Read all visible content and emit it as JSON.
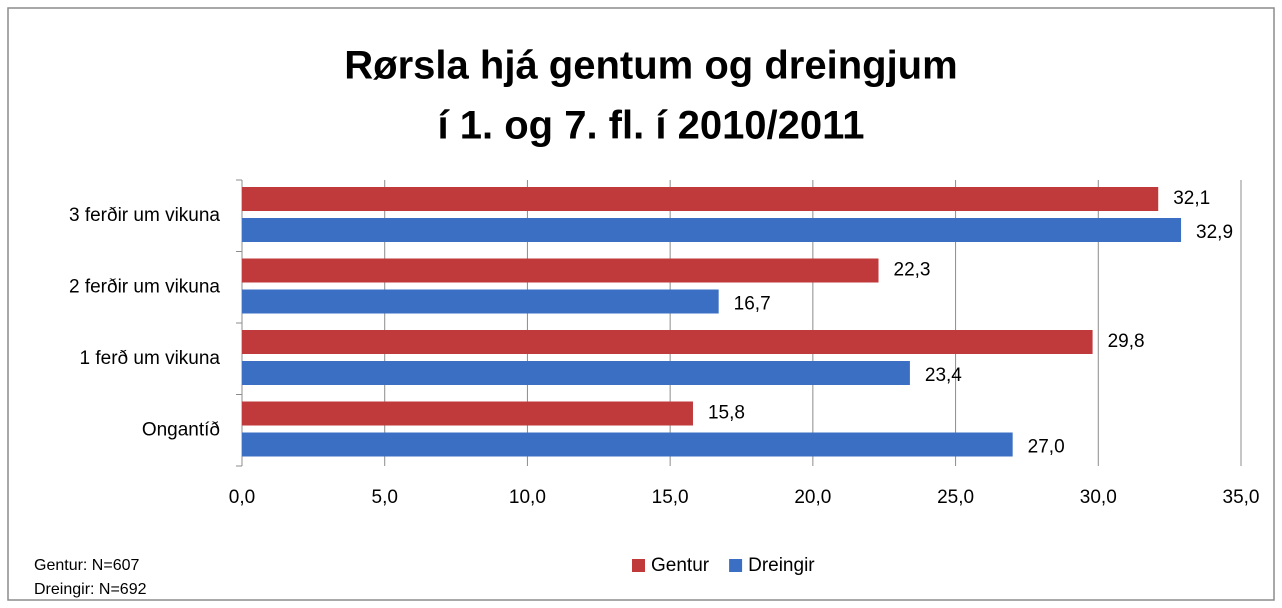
{
  "chart_data": {
    "type": "barh",
    "title_lines": [
      "Rørsla hjá gentum og dreingjum",
      "í 1. og 7. fl. í 2010/2011"
    ],
    "categories": [
      "3 ferðir um vikuna",
      "2 ferðir um vikuna",
      "1 ferð um vikuna",
      "Ongantíð"
    ],
    "series": [
      {
        "name": "Gentur",
        "color": "#c0393b",
        "values": [
          32.1,
          22.3,
          29.8,
          15.8
        ],
        "value_labels": [
          "32,1",
          "22,3",
          "29,8",
          "15,8"
        ]
      },
      {
        "name": "Dreingir",
        "color": "#3a6fc4",
        "values": [
          32.9,
          16.7,
          23.4,
          27.0
        ],
        "value_labels": [
          "32,9",
          "16,7",
          "23,4",
          "27,0"
        ]
      }
    ],
    "xlim": [
      0,
      35
    ],
    "xticks": [
      {
        "value": 0,
        "label": "0,0"
      },
      {
        "value": 5,
        "label": "5,0"
      },
      {
        "value": 10,
        "label": "10,0"
      },
      {
        "value": 15,
        "label": "15,0"
      },
      {
        "value": 20,
        "label": "20,0"
      },
      {
        "value": 25,
        "label": "25,0"
      },
      {
        "value": 30,
        "label": "30,0"
      },
      {
        "value": 35,
        "label": "35,0"
      }
    ],
    "grid": true,
    "legend": "bottom",
    "annotations": [
      "Gentur: N=607",
      "Dreingir: N=692"
    ]
  }
}
